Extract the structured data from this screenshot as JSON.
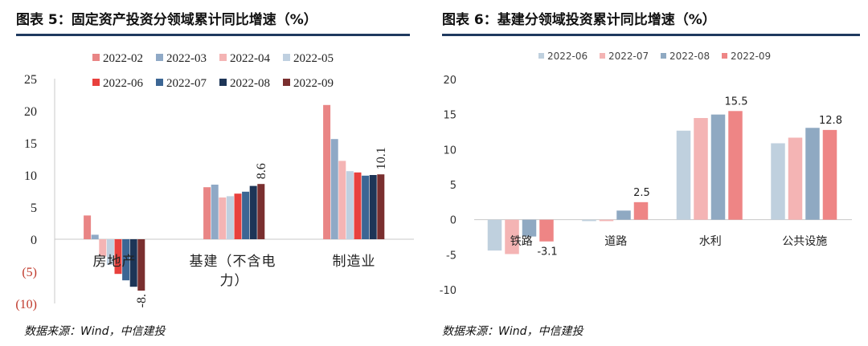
{
  "left": {
    "title": "图表 5：固定资产投资分领域累计同比增速（%）",
    "source": "数据来源：Wind，中信建投",
    "chart_data": {
      "type": "bar",
      "categories": [
        "房地产",
        "基建（不含电力）",
        "制造业"
      ],
      "category_lines": [
        [
          "房地产"
        ],
        [
          "基建（不含电",
          "力）"
        ],
        [
          "制造业"
        ]
      ],
      "ylim": [
        -10,
        25
      ],
      "yticks": [
        25,
        20,
        15,
        10,
        5,
        0,
        -5,
        -10
      ],
      "ytick_labels": [
        "25",
        "20",
        "15",
        "10",
        "5",
        "0",
        "(5)",
        "(10)"
      ],
      "negative_tick_color": "#c0392b",
      "series": [
        {
          "name": "2022-02",
          "color": "#e98585",
          "values": [
            3.7,
            8.1,
            20.9
          ]
        },
        {
          "name": "2022-03",
          "color": "#8fa9c6",
          "values": [
            0.7,
            8.5,
            15.6
          ]
        },
        {
          "name": "2022-04",
          "color": "#f4b4b4",
          "values": [
            -2.7,
            6.5,
            12.2
          ]
        },
        {
          "name": "2022-05",
          "color": "#bfd0e0",
          "values": [
            -4.0,
            6.7,
            10.6
          ]
        },
        {
          "name": "2022-06",
          "color": "#e8403d",
          "values": [
            -5.4,
            7.1,
            10.4
          ]
        },
        {
          "name": "2022-07",
          "color": "#3c6694",
          "values": [
            -6.4,
            7.4,
            9.9
          ]
        },
        {
          "name": "2022-08",
          "color": "#1d3557",
          "values": [
            -7.4,
            8.3,
            10.0
          ]
        },
        {
          "name": "2022-09",
          "color": "#7a2f2f",
          "values": [
            -8.0,
            8.6,
            10.1
          ]
        }
      ],
      "data_labels": [
        {
          "series": 7,
          "category": 0,
          "text": "-8."
        },
        {
          "series": 7,
          "category": 1,
          "text": "8.6"
        },
        {
          "series": 7,
          "category": 2,
          "text": "10.1"
        }
      ]
    }
  },
  "right": {
    "title": "图表 6：基建分领域投资累计同比增速（%）",
    "source": "数据来源：Wind，中信建投",
    "chart_data": {
      "type": "bar",
      "categories": [
        "铁路",
        "道路",
        "水利",
        "公共设施"
      ],
      "ylim": [
        -10,
        20
      ],
      "yticks": [
        20,
        15,
        10,
        5,
        0,
        -5,
        -10
      ],
      "ytick_labels": [
        "20",
        "15",
        "10",
        "5",
        "0",
        "-5",
        "-10"
      ],
      "series": [
        {
          "name": "2022-06",
          "color": "#bfd0de",
          "values": [
            -4.4,
            -0.2,
            12.7,
            10.9
          ]
        },
        {
          "name": "2022-07",
          "color": "#f4b4b4",
          "values": [
            -4.9,
            -0.2,
            14.5,
            11.7
          ]
        },
        {
          "name": "2022-08",
          "color": "#8fa9c2",
          "values": [
            -2.4,
            1.3,
            15.0,
            13.1
          ]
        },
        {
          "name": "2022-09",
          "color": "#ee8585",
          "values": [
            -3.1,
            2.5,
            15.5,
            12.8
          ]
        }
      ],
      "data_labels": [
        {
          "series": 3,
          "category": 0,
          "text": "-3.1"
        },
        {
          "series": 3,
          "category": 1,
          "text": "2.5"
        },
        {
          "series": 3,
          "category": 2,
          "text": "15.5"
        },
        {
          "series": 3,
          "category": 3,
          "text": "12.8"
        }
      ]
    }
  }
}
